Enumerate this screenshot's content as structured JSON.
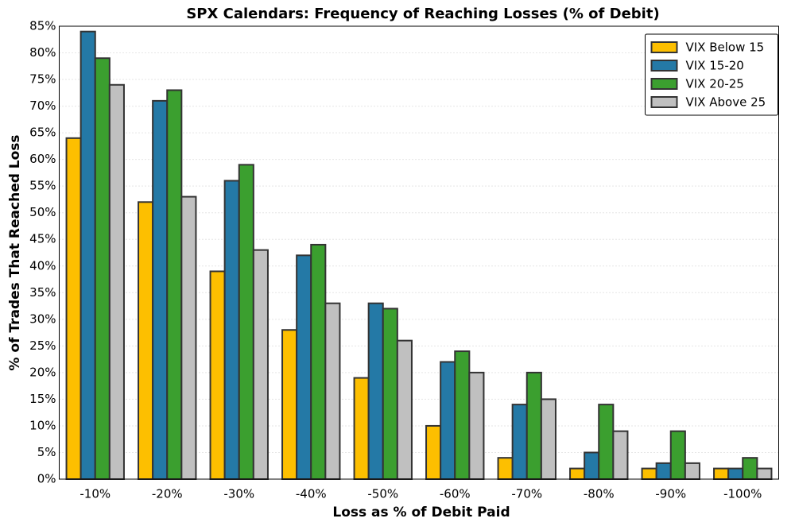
{
  "chart_data": {
    "type": "bar",
    "title": "SPX Calendars: Frequency of Reaching Losses (% of Debit)",
    "x_label": "Loss as % of Debit Paid",
    "y_label": "% of Trades That Reached Loss",
    "categories": [
      "-10%",
      "-20%",
      "-30%",
      "-40%",
      "-50%",
      "-60%",
      "-70%",
      "-80%",
      "-90%",
      "-100%"
    ],
    "series": [
      {
        "name": "VIX Below 15",
        "color": "#fdbf00",
        "values": [
          64,
          52,
          39,
          28,
          19,
          10,
          4,
          2,
          2,
          2
        ]
      },
      {
        "name": "VIX 15-20",
        "color": "#2479a6",
        "values": [
          84,
          71,
          56,
          42,
          33,
          22,
          14,
          5,
          3,
          2
        ]
      },
      {
        "name": "VIX 20-25",
        "color": "#3b9f2f",
        "values": [
          79,
          73,
          59,
          44,
          32,
          24,
          20,
          14,
          9,
          4
        ]
      },
      {
        "name": "VIX Above 25",
        "color": "#c0c0c0",
        "values": [
          74,
          53,
          43,
          33,
          26,
          20,
          15,
          9,
          3,
          2
        ]
      }
    ],
    "ylim": [
      0,
      85
    ],
    "yticks": [
      {
        "value": 0,
        "label": "0%"
      },
      {
        "value": 5,
        "label": "5%"
      },
      {
        "value": 10,
        "label": "10%"
      },
      {
        "value": 15,
        "label": "15%"
      },
      {
        "value": 20,
        "label": "20%"
      },
      {
        "value": 25,
        "label": "25%"
      },
      {
        "value": 30,
        "label": "30%"
      },
      {
        "value": 35,
        "label": "35%"
      },
      {
        "value": 40,
        "label": "40%"
      },
      {
        "value": 45,
        "label": "45%"
      },
      {
        "value": 50,
        "label": "50%"
      },
      {
        "value": 55,
        "label": "55%"
      },
      {
        "value": 60,
        "label": "60%"
      },
      {
        "value": 65,
        "label": "65%"
      },
      {
        "value": 70,
        "label": "70%"
      },
      {
        "value": 75,
        "label": "75%"
      },
      {
        "value": 80,
        "label": "80%"
      },
      {
        "value": 85,
        "label": "85%"
      }
    ],
    "grid": true,
    "legend": "upper-right"
  }
}
